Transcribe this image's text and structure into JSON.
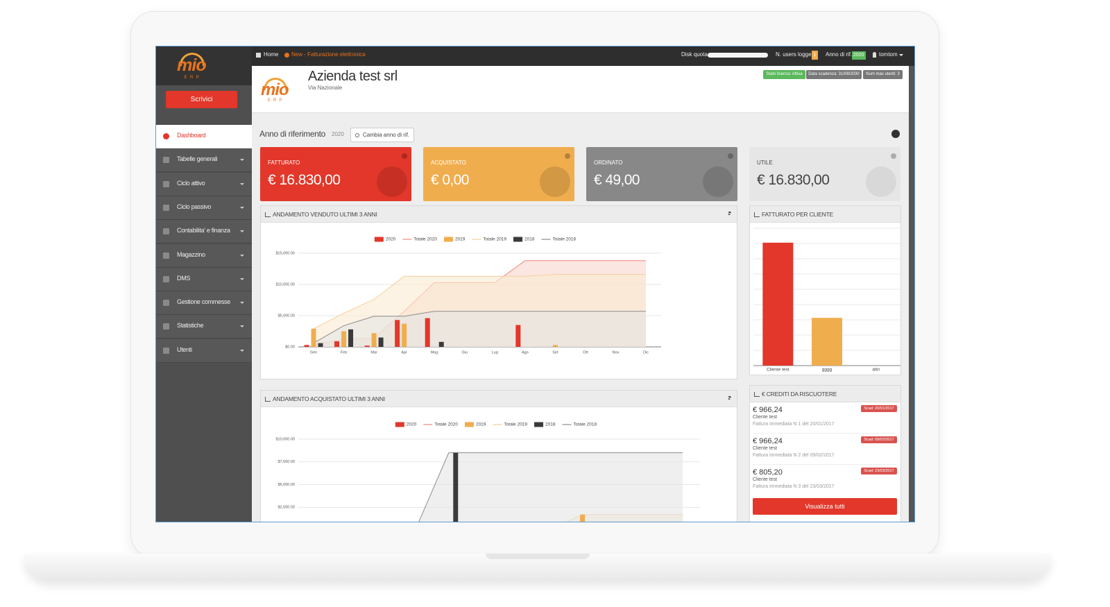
{
  "nav": {
    "home": "Home",
    "news": "New - Fatturazione elettronica",
    "disk_quota": "Disk quota",
    "users_logged": "N. users logged",
    "users_count": "1",
    "year_label": "Anno di rif.",
    "year": "2020",
    "user": "tomtom"
  },
  "sidebar": {
    "logo": "mio",
    "logo_sub": "ERP",
    "button": "Scrivici",
    "menu": [
      "Dashboard",
      "Tabelle generali",
      "Ciclo attivo",
      "Ciclo passivo",
      "Contabilita' e finanza",
      "Magazzino",
      "DMS",
      "Gestione commesse",
      "Statistiche",
      "Utenti"
    ]
  },
  "header": {
    "logo": "mio",
    "logo_sub": "ERP",
    "company": "Azienda test srl",
    "address": "Via Nazionale",
    "badges": [
      {
        "text": "Stato licenza: Attiva",
        "color": "#5cb85c"
      },
      {
        "text": "Data scadenza: 31/08/2030",
        "color": "#777777"
      },
      {
        "text": "Num max utenti: 3",
        "color": "#777777"
      }
    ]
  },
  "toolbar": {
    "label": "Anno di riferimento",
    "year": "2020",
    "button": "Cambia anno di rif."
  },
  "cards": [
    {
      "title": "FATTURATO",
      "value": "€ 16.830,00",
      "color": "#e2372a"
    },
    {
      "title": "ACQUISTATO",
      "value": "€ 0,00",
      "color": "#f0ad4e"
    },
    {
      "title": "ORDINATO",
      "value": "€ 49,00",
      "color": "#888888"
    },
    {
      "title": "UTILE",
      "value": "€ 16.830,00",
      "color": "#e6e6e6"
    }
  ],
  "chart_data": [
    {
      "type": "bar",
      "title": "ANDAMENTO VENDUTO ULTIMI 3 ANNI",
      "categories": [
        "Gen",
        "Feb",
        "Mar",
        "Apr",
        "Mag",
        "Giu",
        "Lug",
        "Ago",
        "Set",
        "Ott",
        "Nov",
        "Dic"
      ],
      "ylim": [
        0,
        15000
      ],
      "yticks": [
        {
          "value": 0,
          "label": "$0.00"
        },
        {
          "value": 5000,
          "label": "$5,000.00"
        },
        {
          "value": 10000,
          "label": "$10,000.00"
        },
        {
          "value": 15000,
          "label": "$15,000.00"
        }
      ],
      "grid": true,
      "series": [
        {
          "name": "2020",
          "type": "bar",
          "color": "#e2372a",
          "values": [
            300,
            900,
            200,
            4300,
            4600,
            0,
            0,
            3500,
            0,
            0,
            0,
            0
          ]
        },
        {
          "name": "Totale 2020",
          "type": "area",
          "color": "#ef8878",
          "fill": "#f9d6cf",
          "values": [
            300,
            1200,
            1400,
            5700,
            10300,
            10300,
            10300,
            13800,
            13800,
            13800,
            13800,
            13800
          ]
        },
        {
          "name": "2019",
          "type": "bar",
          "color": "#f0ad4e",
          "values": [
            2900,
            2500,
            2200,
            3700,
            0,
            0,
            0,
            0,
            300,
            0,
            0,
            0
          ]
        },
        {
          "name": "Totale 2019",
          "type": "area",
          "color": "#f6cf98",
          "fill": "#fcebd2",
          "values": [
            2900,
            5400,
            7600,
            11300,
            11300,
            11300,
            11300,
            11300,
            11600,
            11600,
            11600,
            11600
          ]
        },
        {
          "name": "2018",
          "type": "bar",
          "color": "#3a3a3a",
          "values": [
            600,
            2800,
            1500,
            0,
            800,
            0,
            0,
            0,
            0,
            0,
            0,
            0
          ]
        },
        {
          "name": "Totale 2018",
          "type": "area",
          "color": "#8c8c8c",
          "fill": "#e4e4e4",
          "values": [
            600,
            3400,
            4900,
            4900,
            5700,
            5700,
            5700,
            5700,
            5700,
            5700,
            5700,
            5700
          ]
        }
      ]
    },
    {
      "type": "bar",
      "title": "ANDAMENTO ACQUISTATO ULTIMI 3 ANNI",
      "categories": [
        null,
        null,
        null,
        null,
        null,
        null,
        null,
        null,
        null,
        null,
        null,
        null
      ],
      "ylim": [
        0,
        10000
      ],
      "yticks": [
        {
          "value": 2500,
          "label": "$2,500.00"
        },
        {
          "value": 5000,
          "label": "$5,000.00"
        },
        {
          "value": 7500,
          "label": "$7,500.00"
        },
        {
          "value": 10000,
          "label": "$10,000.00"
        }
      ],
      "grid": true,
      "series": [
        {
          "name": "2020",
          "type": "bar",
          "color": "#e2372a",
          "values": [
            0,
            0,
            0,
            0,
            0,
            0,
            0,
            0,
            0,
            0,
            0,
            0
          ]
        },
        {
          "name": "Totale 2020",
          "type": "area",
          "color": "#ef8878",
          "fill": "#f9d6cf",
          "values": [
            0,
            0,
            0,
            0,
            0,
            0,
            0,
            0,
            0,
            0,
            0,
            0
          ]
        },
        {
          "name": "2019",
          "type": "bar",
          "color": "#f0ad4e",
          "values": [
            0,
            0,
            0,
            0,
            0,
            0,
            0,
            0,
            1700,
            0,
            0,
            0
          ]
        },
        {
          "name": "Totale 2019",
          "type": "area",
          "color": "#f6cf98",
          "fill": "#fcebd2",
          "values": [
            0,
            0,
            0,
            0,
            0,
            0,
            0,
            0,
            1700,
            1700,
            1700,
            1700
          ]
        },
        {
          "name": "2018",
          "type": "bar",
          "color": "#3a3a3a",
          "values": [
            0,
            0,
            0,
            0,
            8500,
            0,
            0,
            0,
            0,
            0,
            0,
            0
          ]
        },
        {
          "name": "Totale 2018",
          "type": "area",
          "color": "#8c8c8c",
          "fill": "#e4e4e4",
          "values": [
            0,
            0,
            0,
            0,
            8500,
            8500,
            8500,
            8500,
            8500,
            8500,
            8500,
            8500
          ]
        }
      ]
    },
    {
      "type": "bar",
      "title": "FATTURATO PER CLIENTE",
      "categories": [
        "Cliente test",
        "gggg",
        "altri"
      ],
      "values": [
        12100,
        4700,
        0
      ],
      "colors": [
        "#e2372a",
        "#f0ad4e",
        "#3a3a3a"
      ],
      "ylim": [
        0,
        14000
      ],
      "grid": true
    }
  ],
  "credits": {
    "title": "€ CREDITI DA RISCUOTERE",
    "items": [
      {
        "amount": "€ 966,24",
        "client": "Cliente test",
        "doc": "Fattura immediata N 1 del 20/01/2017",
        "due": "Scad: 20/01/2017"
      },
      {
        "amount": "€ 966,24",
        "client": "Cliente test",
        "doc": "Fattura immediata N 2 del 09/02/2017",
        "due": "Scad: 09/02/2017"
      },
      {
        "amount": "€ 805,20",
        "client": "Cliente test",
        "doc": "Fattura immediata N 3 del 23/03/2017",
        "due": "Scad: 23/03/2017"
      }
    ],
    "button": "Visualizza tutti"
  }
}
